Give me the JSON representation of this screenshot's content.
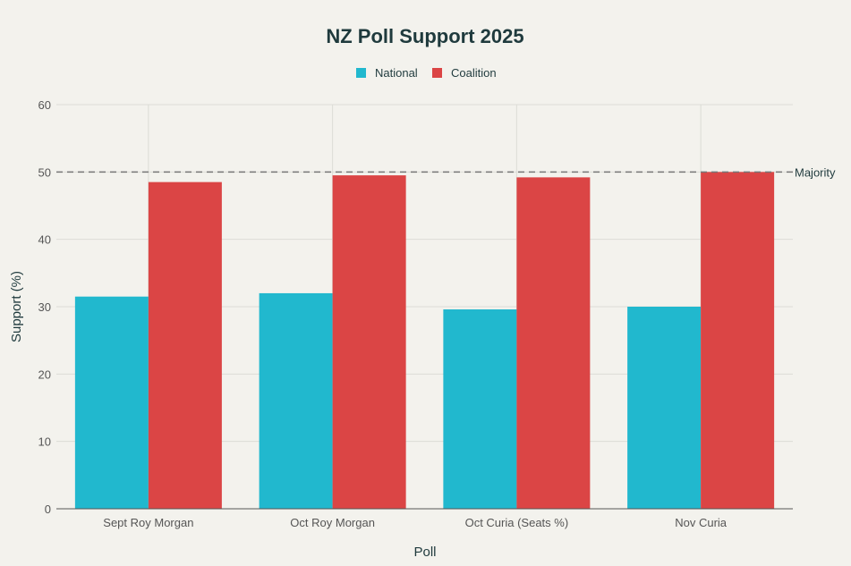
{
  "chart_data": {
    "type": "bar",
    "title": "NZ Poll Support 2025",
    "xlabel": "Poll",
    "ylabel": "Support (%)",
    "categories": [
      "Sept Roy Morgan",
      "Oct Roy Morgan",
      "Oct Curia (Seats %)",
      "Nov Curia"
    ],
    "series": [
      {
        "name": "National",
        "color": "#21b8ce",
        "values": [
          31.5,
          32.0,
          29.6,
          30.0
        ]
      },
      {
        "name": "Coalition",
        "color": "#db4545",
        "values": [
          48.5,
          49.5,
          49.2,
          50.0
        ]
      }
    ],
    "ylim": [
      0,
      60
    ],
    "yticks": [
      0,
      10,
      20,
      30,
      40,
      50,
      60
    ],
    "reference_line": {
      "value": 50,
      "label": "Majority",
      "style": "dashed"
    },
    "legend": "top-center",
    "grid": true
  }
}
